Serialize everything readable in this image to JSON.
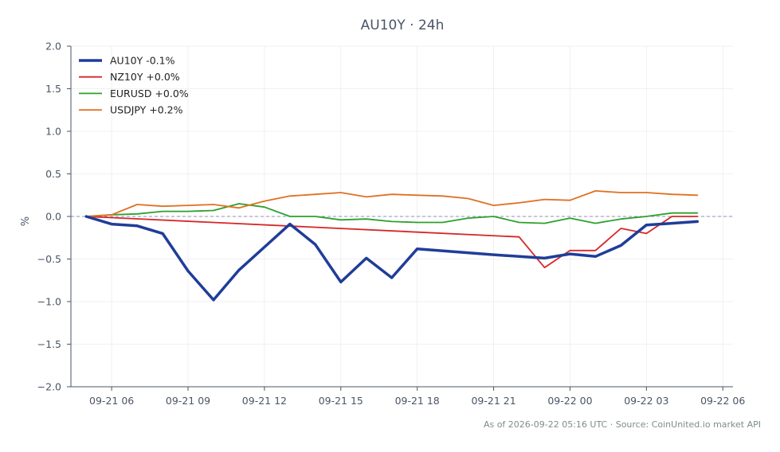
{
  "chart_data": {
    "type": "line",
    "title": "AU10Y · 24h",
    "xlabel": "",
    "ylabel": "%",
    "ylim": [
      -2.0,
      2.0
    ],
    "xlim": [
      "2026-09-21 04:24",
      "2026-09-22 06:24"
    ],
    "grid": true,
    "legend": "top-left",
    "zero_line": 0,
    "x_ticks": [
      "2026-09-21 06:00",
      "2026-09-21 09:00",
      "2026-09-21 12:00",
      "2026-09-21 15:00",
      "2026-09-21 18:00",
      "2026-09-21 21:00",
      "2026-09-22 00:00",
      "2026-09-22 03:00",
      "2026-09-22 06:00"
    ],
    "x_tick_labels": [
      "09-21 06",
      "09-21 09",
      "09-21 12",
      "09-21 15",
      "09-21 18",
      "09-21 21",
      "09-22 00",
      "09-22 03",
      "09-22 06"
    ],
    "y_ticks": [
      2.0,
      1.5,
      1.0,
      0.5,
      0.0,
      -0.5,
      -1.0,
      -1.5,
      -2.0
    ],
    "y_tick_labels": [
      "2.0",
      "1.5",
      "1.0",
      "0.5",
      "0.0",
      "−0.5",
      "−1.0",
      "−1.5",
      "−2.0"
    ],
    "series": [
      {
        "name": "AU10Y -0.1%",
        "color": "#1f3d99",
        "width": 3.5,
        "points": [
          [
            "2026-09-21 05:00",
            0.0
          ],
          [
            "2026-09-21 06:00",
            -0.09
          ],
          [
            "2026-09-21 07:00",
            -0.11
          ],
          [
            "2026-09-21 08:00",
            -0.2
          ],
          [
            "2026-09-21 09:00",
            -0.64
          ],
          [
            "2026-09-21 10:00",
            -0.98
          ],
          [
            "2026-09-21 11:00",
            -0.63
          ],
          [
            "2026-09-21 12:00",
            -0.36
          ],
          [
            "2026-09-21 13:00",
            -0.09
          ],
          [
            "2026-09-21 14:00",
            -0.33
          ],
          [
            "2026-09-21 15:00",
            -0.77
          ],
          [
            "2026-09-21 16:00",
            -0.49
          ],
          [
            "2026-09-21 17:00",
            -0.72
          ],
          [
            "2026-09-21 18:00",
            -0.38
          ],
          [
            "2026-09-21 21:00",
            -0.45
          ],
          [
            "2026-09-21 23:00",
            -0.49
          ],
          [
            "2026-09-22 00:00",
            -0.44
          ],
          [
            "2026-09-22 01:00",
            -0.47
          ],
          [
            "2026-09-22 02:00",
            -0.34
          ],
          [
            "2026-09-22 03:00",
            -0.1
          ],
          [
            "2026-09-22 04:00",
            -0.08
          ],
          [
            "2026-09-22 05:00",
            -0.06
          ]
        ]
      },
      {
        "name": "NZ10Y +0.0%",
        "color": "#d62728",
        "width": 1.8,
        "points": [
          [
            "2026-09-21 05:00",
            0.0
          ],
          [
            "2026-09-21 22:00",
            -0.24
          ],
          [
            "2026-09-21 23:00",
            -0.6
          ],
          [
            "2026-09-22 00:00",
            -0.4
          ],
          [
            "2026-09-22 01:00",
            -0.4
          ],
          [
            "2026-09-22 02:00",
            -0.14
          ],
          [
            "2026-09-22 03:00",
            -0.2
          ],
          [
            "2026-09-22 04:00",
            0.0
          ],
          [
            "2026-09-22 05:00",
            0.0
          ]
        ]
      },
      {
        "name": "EURUSD +0.0%",
        "color": "#2ca02c",
        "width": 1.8,
        "points": [
          [
            "2026-09-21 05:00",
            0.0
          ],
          [
            "2026-09-21 06:00",
            0.02
          ],
          [
            "2026-09-21 07:00",
            0.03
          ],
          [
            "2026-09-21 08:00",
            0.06
          ],
          [
            "2026-09-21 09:00",
            0.06
          ],
          [
            "2026-09-21 10:00",
            0.07
          ],
          [
            "2026-09-21 11:00",
            0.15
          ],
          [
            "2026-09-21 12:00",
            0.11
          ],
          [
            "2026-09-21 13:00",
            0.0
          ],
          [
            "2026-09-21 14:00",
            0.0
          ],
          [
            "2026-09-21 15:00",
            -0.04
          ],
          [
            "2026-09-21 16:00",
            -0.03
          ],
          [
            "2026-09-21 17:00",
            -0.06
          ],
          [
            "2026-09-21 18:00",
            -0.07
          ],
          [
            "2026-09-21 19:00",
            -0.07
          ],
          [
            "2026-09-21 20:00",
            -0.02
          ],
          [
            "2026-09-21 21:00",
            0.0
          ],
          [
            "2026-09-21 22:00",
            -0.07
          ],
          [
            "2026-09-21 23:00",
            -0.08
          ],
          [
            "2026-09-22 00:00",
            -0.02
          ],
          [
            "2026-09-22 01:00",
            -0.08
          ],
          [
            "2026-09-22 02:00",
            -0.03
          ],
          [
            "2026-09-22 03:00",
            0.0
          ],
          [
            "2026-09-22 04:00",
            0.04
          ],
          [
            "2026-09-22 05:00",
            0.04
          ]
        ]
      },
      {
        "name": "USDJPY +0.2%",
        "color": "#e07020",
        "width": 1.8,
        "points": [
          [
            "2026-09-21 05:00",
            0.0
          ],
          [
            "2026-09-21 06:00",
            0.02
          ],
          [
            "2026-09-21 07:00",
            0.14
          ],
          [
            "2026-09-21 08:00",
            0.12
          ],
          [
            "2026-09-21 09:00",
            0.13
          ],
          [
            "2026-09-21 10:00",
            0.14
          ],
          [
            "2026-09-21 11:00",
            0.1
          ],
          [
            "2026-09-21 12:00",
            0.18
          ],
          [
            "2026-09-21 13:00",
            0.24
          ],
          [
            "2026-09-21 14:00",
            0.26
          ],
          [
            "2026-09-21 15:00",
            0.28
          ],
          [
            "2026-09-21 16:00",
            0.23
          ],
          [
            "2026-09-21 17:00",
            0.26
          ],
          [
            "2026-09-21 18:00",
            0.25
          ],
          [
            "2026-09-21 19:00",
            0.24
          ],
          [
            "2026-09-21 20:00",
            0.21
          ],
          [
            "2026-09-21 21:00",
            0.13
          ],
          [
            "2026-09-21 22:00",
            0.16
          ],
          [
            "2026-09-21 23:00",
            0.2
          ],
          [
            "2026-09-22 00:00",
            0.19
          ],
          [
            "2026-09-22 01:00",
            0.3
          ],
          [
            "2026-09-22 02:00",
            0.28
          ],
          [
            "2026-09-22 03:00",
            0.28
          ],
          [
            "2026-09-22 04:00",
            0.26
          ],
          [
            "2026-09-22 05:00",
            0.25
          ]
        ]
      }
    ]
  },
  "footer": {
    "source_text": "As of 2026-09-22 05:16 UTC · Source: CoinUnited.io market API"
  }
}
